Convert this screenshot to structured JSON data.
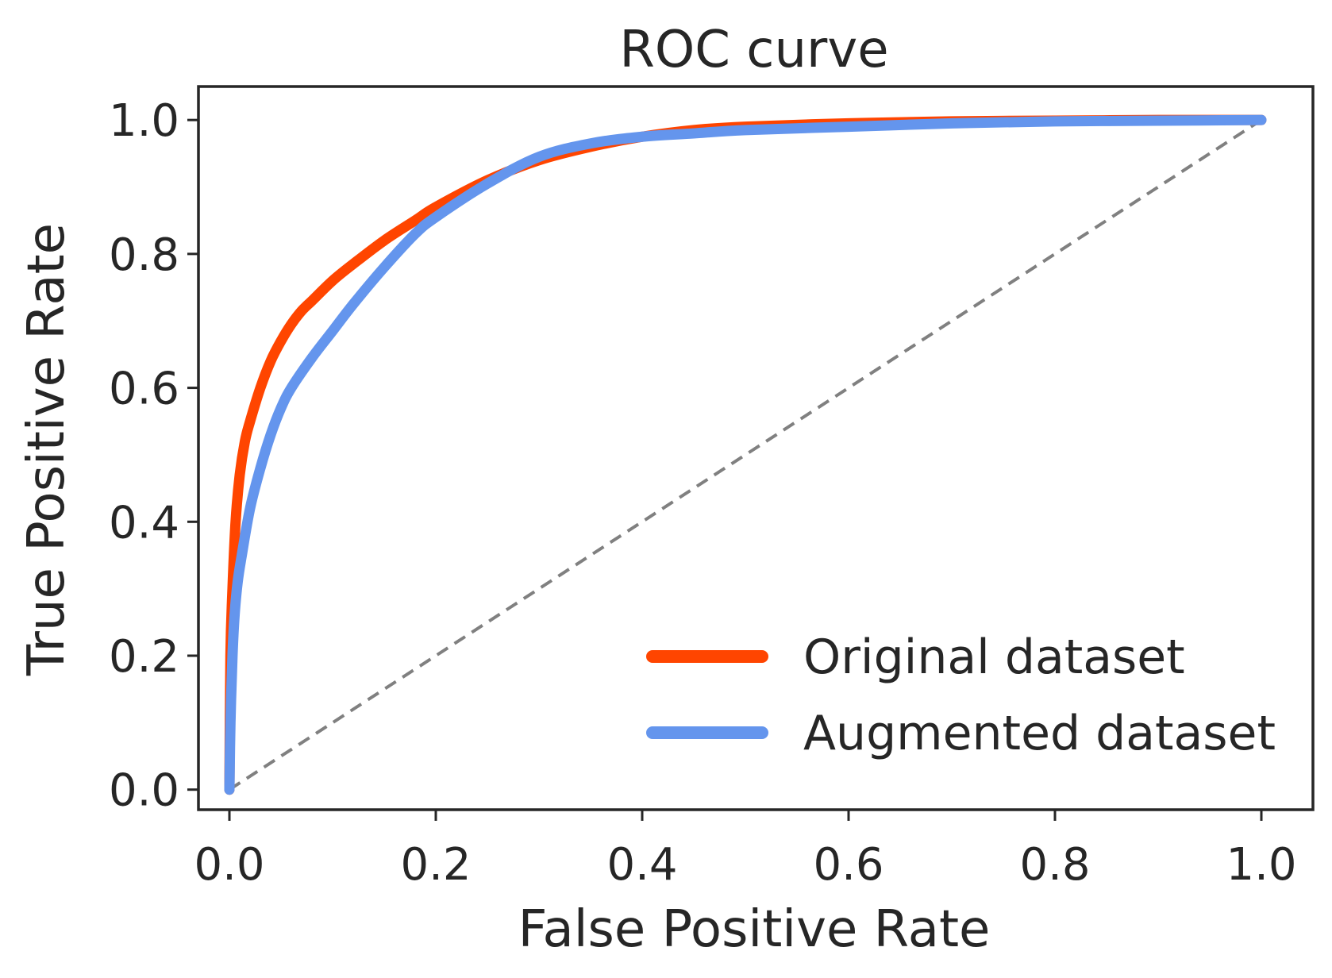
{
  "chart_data": {
    "type": "line",
    "title": "ROC curve",
    "xlabel": "False Positive Rate",
    "ylabel": "True Positive Rate",
    "xlim": [
      -0.03,
      1.05
    ],
    "ylim": [
      -0.03,
      1.05
    ],
    "x_ticks": [
      "0.0",
      "0.2",
      "0.4",
      "0.6",
      "0.8",
      "1.0"
    ],
    "y_ticks": [
      "0.0",
      "0.2",
      "0.4",
      "0.6",
      "0.8",
      "1.0"
    ],
    "x_tick_values": [
      0,
      0.2,
      0.4,
      0.6,
      0.8,
      1.0
    ],
    "y_tick_values": [
      0,
      0.2,
      0.4,
      0.6,
      0.8,
      1.0
    ],
    "grid": false,
    "legend_position": "lower-right",
    "series": [
      {
        "name": "Original dataset",
        "color": "#FF4500",
        "x": [
          0,
          0.001,
          0.003,
          0.006,
          0.01,
          0.015,
          0.02,
          0.03,
          0.04,
          0.05,
          0.06,
          0.07,
          0.08,
          0.1,
          0.12,
          0.15,
          0.18,
          0.2,
          0.25,
          0.3,
          0.35,
          0.4,
          0.45,
          0.5,
          0.6,
          0.7,
          0.8,
          0.9,
          1.0
        ],
        "y": [
          0,
          0.2,
          0.3,
          0.4,
          0.47,
          0.52,
          0.55,
          0.6,
          0.64,
          0.67,
          0.695,
          0.715,
          0.73,
          0.76,
          0.785,
          0.82,
          0.85,
          0.87,
          0.91,
          0.94,
          0.96,
          0.975,
          0.985,
          0.99,
          0.995,
          0.998,
          0.999,
          1.0,
          1.0
        ]
      },
      {
        "name": "Augmented dataset",
        "color": "#6495ED",
        "x": [
          0,
          0.001,
          0.003,
          0.005,
          0.008,
          0.012,
          0.02,
          0.03,
          0.04,
          0.05,
          0.06,
          0.08,
          0.1,
          0.12,
          0.15,
          0.18,
          0.2,
          0.25,
          0.3,
          0.35,
          0.4,
          0.45,
          0.5,
          0.6,
          0.7,
          0.8,
          0.9,
          1.0
        ],
        "y": [
          0,
          0.1,
          0.2,
          0.26,
          0.31,
          0.35,
          0.42,
          0.48,
          0.53,
          0.57,
          0.6,
          0.645,
          0.685,
          0.725,
          0.78,
          0.83,
          0.855,
          0.905,
          0.945,
          0.965,
          0.975,
          0.98,
          0.985,
          0.99,
          0.995,
          0.998,
          0.999,
          1.0
        ]
      }
    ],
    "reference_line": {
      "color": "#808080",
      "x": [
        0,
        1
      ],
      "y": [
        0,
        1
      ]
    }
  }
}
